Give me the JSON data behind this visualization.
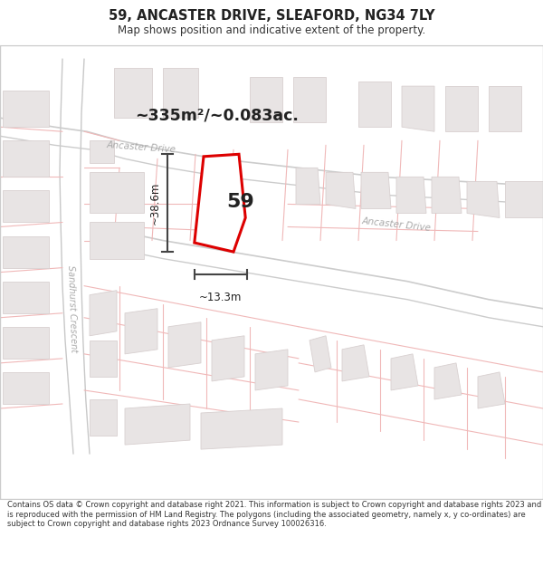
{
  "title_line1": "59, ANCASTER DRIVE, SLEAFORD, NG34 7LY",
  "title_line2": "Map shows position and indicative extent of the property.",
  "footer_text": "Contains OS data © Crown copyright and database right 2021. This information is subject to Crown copyright and database rights 2023 and is reproduced with the permission of HM Land Registry. The polygons (including the associated geometry, namely x, y co-ordinates) are subject to Crown copyright and database rights 2023 Ordnance Survey 100026316.",
  "area_label": "~335m²/~0.083ac.",
  "dim_vertical": "~38.6m",
  "dim_horizontal": "~13.3m",
  "number_label": "59",
  "street_label_top": "Ancaster Drive",
  "street_label_right": "Ancaster Drive",
  "street_label_left": "Sandhurst Crescent",
  "bg_color": "#ffffff",
  "road_color": "#f0b8b8",
  "building_color": "#e8e4e4",
  "building_edge": "#d8d0d0",
  "plot_fill": "#ffffff",
  "plot_edge": "#cc0000",
  "dim_color": "#444444",
  "label_color": "#aaaaaa"
}
